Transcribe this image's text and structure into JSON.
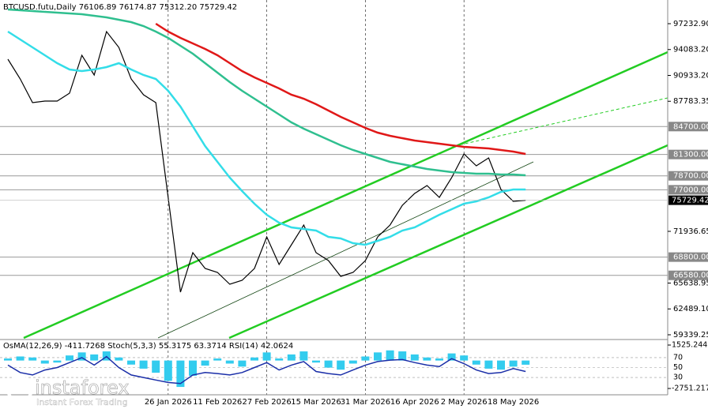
{
  "chart_data": [
    {
      "type": "price",
      "header": "BTCUSD.futu,Daily  76106.89 76174.87 75312.20 75729.42",
      "categories": [
        null,
        null,
        null,
        null,
        null,
        null,
        null,
        null,
        null,
        null,
        null,
        null,
        null,
        "26 Jan 2026",
        null,
        null,
        null,
        "11 Feb 2026",
        null,
        null,
        null,
        "27 Feb 2026",
        null,
        null,
        null,
        "15 Mar 2026",
        null,
        null,
        null,
        "31 Mar 2026",
        null,
        null,
        null,
        "16 Apr 2026",
        null,
        null,
        null,
        "2 May 2026",
        null,
        null,
        null,
        "18 May 2026",
        null
      ],
      "series": [
        {
          "name": "BTCUSD",
          "color": "#000000",
          "values": [
            92905,
            90500,
            87615,
            87808,
            87808,
            88770,
            93386,
            90981,
            96271,
            94348,
            90500,
            88577,
            87615,
            76073,
            64532,
            69341,
            67417,
            66936,
            65494,
            65974,
            67417,
            71264,
            67898,
            70303,
            72707,
            69341,
            68379,
            66455,
            66936,
            68379,
            71264,
            72707,
            75112,
            76554,
            77516,
            76073,
            78478,
            81363,
            79921,
            80882,
            77035,
            75592,
            75729.42
          ]
        },
        {
          "name": "MA fast",
          "color": "#33dde8",
          "values": [
            96271,
            95309,
            94348,
            93386,
            92424,
            91655,
            91462,
            91655,
            91943,
            92424,
            91655,
            90981,
            90500,
            89058,
            87134,
            84730,
            82325,
            80401,
            78478,
            76843,
            75304,
            73957,
            72996,
            72419,
            72226,
            72034,
            71264,
            71072,
            70495,
            70303,
            70783,
            71264,
            72034,
            72419,
            73188,
            73957,
            74631,
            75304,
            75592,
            76073,
            76747,
            77035,
            77035
          ]
        },
        {
          "name": "MA mid",
          "color": "#2fbf8f",
          "values": [
            98964,
            98868,
            98772,
            98676,
            98580,
            98483,
            98387,
            98195,
            98002,
            97714,
            97425,
            96944,
            96271,
            95502,
            94540,
            93578,
            92424,
            91270,
            90116,
            89058,
            88096,
            87134,
            86172,
            85211,
            84441,
            83768,
            83095,
            82421,
            81844,
            81363,
            80882,
            80401,
            80113,
            79824,
            79536,
            79344,
            79151,
            79055,
            78959,
            78959,
            78862,
            78862,
            78766
          ]
        },
        {
          "name": "MA slow",
          "color": "#e01818",
          "values": [
            null,
            null,
            null,
            null,
            null,
            null,
            null,
            null,
            null,
            null,
            null,
            null,
            97233,
            96271,
            95502,
            94828,
            94155,
            93386,
            92424,
            91462,
            90693,
            90020,
            89346,
            88577,
            88096,
            87423,
            86653,
            85884,
            85211,
            84537,
            83960,
            83575,
            83287,
            82998,
            82806,
            82614,
            82421,
            82229,
            82133,
            82037,
            81844,
            81652,
            81363
          ]
        }
      ],
      "ylim": [
        58954,
        99637
      ],
      "yticks": [
        {
          "value": 97232.9,
          "label": "97232.90"
        },
        {
          "value": 94083.2,
          "label": "94083.20"
        },
        {
          "value": 90933.2,
          "label": "90933.20"
        },
        {
          "value": 87783.35,
          "label": "87783.35"
        },
        {
          "value": 71936.65,
          "label": "71936.65"
        },
        {
          "value": 65638.95,
          "label": "65638.95"
        },
        {
          "value": 62489.1,
          "label": "62489.10"
        },
        {
          "value": 59339.25,
          "label": "59339.25"
        }
      ],
      "levels": [
        {
          "value": 84700,
          "label": "84700.00"
        },
        {
          "value": 81300,
          "label": "81300.00"
        },
        {
          "value": 78700,
          "label": "78700.00"
        },
        {
          "value": 77000,
          "label": "77000.00"
        },
        {
          "value": 68800,
          "label": "68800.00"
        },
        {
          "value": 66580,
          "label": "66580.00"
        }
      ],
      "last_price": 75729.42,
      "grid": true
    },
    {
      "type": "indicator",
      "label": "OsMA(12,26,9) -411.7268  Stoch(5,3,3) 55.3175 63.3714  RSI(14) 42.0624",
      "series": [
        {
          "name": "OsMA",
          "color": "#33ccee",
          "values": [
            200,
            400,
            300,
            -300,
            -200,
            500,
            800,
            600,
            900,
            300,
            -400,
            -800,
            -1200,
            -2000,
            -2600,
            -1500,
            -500,
            200,
            -300,
            -600,
            300,
            800,
            200,
            600,
            900,
            -200,
            -700,
            -900,
            -300,
            400,
            800,
            1000,
            900,
            600,
            300,
            200,
            700,
            500,
            -400,
            -800,
            -900,
            -600,
            -411.7268
          ]
        },
        {
          "name": "RSI",
          "color": "#1a2ea8",
          "axis": "y2",
          "values": [
            55,
            40,
            35,
            45,
            50,
            60,
            70,
            55,
            72,
            50,
            35,
            30,
            25,
            20,
            18,
            35,
            40,
            38,
            35,
            40,
            50,
            60,
            45,
            55,
            62,
            42,
            38,
            35,
            45,
            55,
            62,
            65,
            66,
            60,
            55,
            52,
            68,
            58,
            45,
            38,
            40,
            48,
            42.0624
          ]
        }
      ],
      "ylim": [
        -2751.2177,
        1525.2442
      ],
      "yticks": [
        1525.2442,
        -2751.2177
      ],
      "y2lim": [
        0,
        100
      ],
      "y2ticks": [
        70,
        50,
        30
      ]
    }
  ],
  "watermark": {
    "brand": "instaforex",
    "tagline": "Instant Forex Trading"
  }
}
